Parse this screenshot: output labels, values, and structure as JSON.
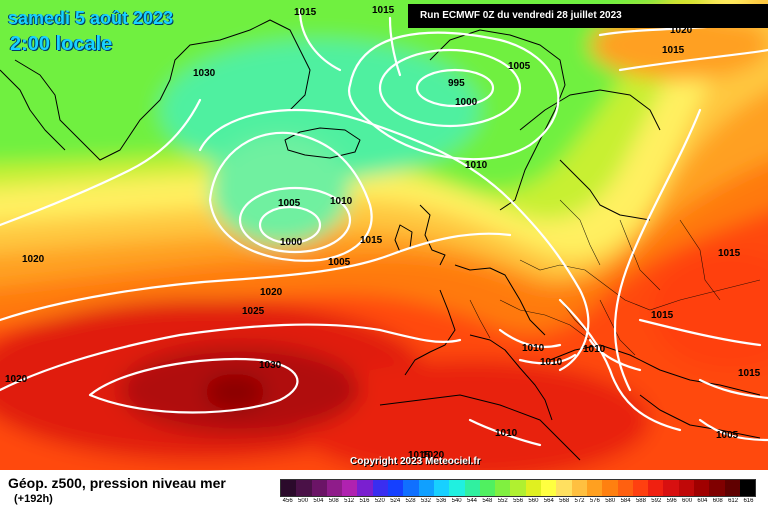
{
  "header": {
    "date": "samedi 5 août 2023",
    "time": "2:00 locale",
    "run": "Run ECMWF 0Z du vendredi 28 juillet 2023"
  },
  "copyright": "Copyright 2023 Meteociel.fr",
  "legend": {
    "title": "Géop. z500, pression niveau mer",
    "subtitle": "(+192h)",
    "scale": [
      {
        "v": "456",
        "c": "#2b0a2b"
      },
      {
        "v": "500",
        "c": "#4a1147"
      },
      {
        "v": "504",
        "c": "#6b1466"
      },
      {
        "v": "508",
        "c": "#8f1c8a"
      },
      {
        "v": "512",
        "c": "#b022b0"
      },
      {
        "v": "516",
        "c": "#7a1fd0"
      },
      {
        "v": "520",
        "c": "#3a2ef0"
      },
      {
        "v": "524",
        "c": "#1540ff"
      },
      {
        "v": "528",
        "c": "#1070ff"
      },
      {
        "v": "532",
        "c": "#10a0ff"
      },
      {
        "v": "536",
        "c": "#18d0ff"
      },
      {
        "v": "540",
        "c": "#20f0e0"
      },
      {
        "v": "544",
        "c": "#30f0a0"
      },
      {
        "v": "548",
        "c": "#50f060"
      },
      {
        "v": "552",
        "c": "#80f040"
      },
      {
        "v": "556",
        "c": "#b0f030"
      },
      {
        "v": "560",
        "c": "#e0f020"
      },
      {
        "v": "564",
        "c": "#ffff40"
      },
      {
        "v": "568",
        "c": "#ffe060"
      },
      {
        "v": "572",
        "c": "#ffc040"
      },
      {
        "v": "576",
        "c": "#ffa020"
      },
      {
        "v": "580",
        "c": "#ff8010"
      },
      {
        "v": "584",
        "c": "#ff6010"
      },
      {
        "v": "588",
        "c": "#ff4010"
      },
      {
        "v": "592",
        "c": "#f02010"
      },
      {
        "v": "596",
        "c": "#d81010"
      },
      {
        "v": "600",
        "c": "#c00808"
      },
      {
        "v": "604",
        "c": "#a00000"
      },
      {
        "v": "608",
        "c": "#800000"
      },
      {
        "v": "612",
        "c": "#600000"
      },
      {
        "v": "616",
        "c": "#000000"
      }
    ]
  },
  "isobars": [
    "1015",
    "1015",
    "1020",
    "1030",
    "1000",
    "995",
    "1005",
    "1010",
    "1005",
    "1010",
    "1000",
    "1015",
    "1005",
    "1020",
    "1020",
    "1025",
    "1015",
    "1015",
    "1015",
    "1010",
    "1010",
    "1010",
    "1030",
    "1020",
    "1015",
    "1010",
    "1005",
    "1015",
    "1020"
  ]
}
